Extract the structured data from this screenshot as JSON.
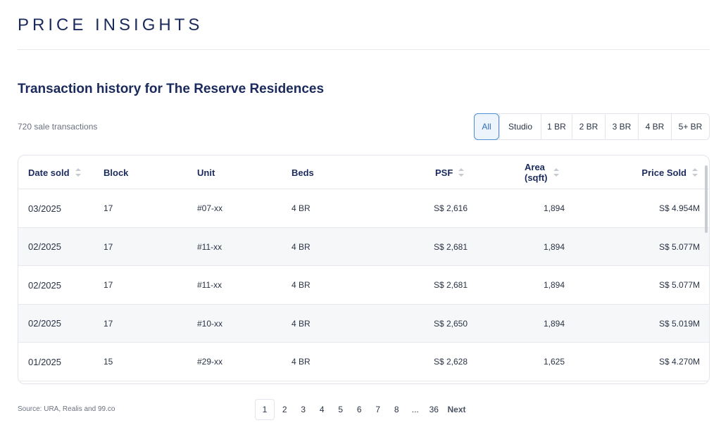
{
  "page": {
    "title": "PRICE INSIGHTS",
    "section_heading": "Transaction history for The Reserve Residences",
    "transaction_count": "720 sale transactions",
    "source": "Source: URA, Realis and 99.co"
  },
  "filters": {
    "active": "All",
    "items": [
      {
        "label": "All"
      },
      {
        "label": "Studio"
      },
      {
        "label": "1 BR"
      },
      {
        "label": "2 BR"
      },
      {
        "label": "3 BR"
      },
      {
        "label": "4 BR"
      },
      {
        "label": "5+ BR"
      }
    ]
  },
  "table": {
    "columns": {
      "date": "Date sold",
      "block": "Block",
      "unit": "Unit",
      "beds": "Beds",
      "psf": "PSF",
      "area_line1": "Area",
      "area_line2": "(sqft)",
      "price": "Price Sold"
    },
    "rows": [
      {
        "date": "03/2025",
        "block": "17",
        "unit": "#07-xx",
        "beds": "4 BR",
        "psf": "S$ 2,616",
        "area": "1,894",
        "price": "S$ 4.954M"
      },
      {
        "date": "02/2025",
        "block": "17",
        "unit": "#11-xx",
        "beds": "4 BR",
        "psf": "S$ 2,681",
        "area": "1,894",
        "price": "S$ 5.077M"
      },
      {
        "date": "02/2025",
        "block": "17",
        "unit": "#11-xx",
        "beds": "4 BR",
        "psf": "S$ 2,681",
        "area": "1,894",
        "price": "S$ 5.077M"
      },
      {
        "date": "02/2025",
        "block": "17",
        "unit": "#10-xx",
        "beds": "4 BR",
        "psf": "S$ 2,650",
        "area": "1,894",
        "price": "S$ 5.019M"
      },
      {
        "date": "01/2025",
        "block": "15",
        "unit": "#29-xx",
        "beds": "4 BR",
        "psf": "S$ 2,628",
        "area": "1,625",
        "price": "S$ 4.270M"
      }
    ]
  },
  "pagination": {
    "pages": [
      "1",
      "2",
      "3",
      "4",
      "5",
      "6",
      "7",
      "8"
    ],
    "ellipsis": "...",
    "last": "36",
    "next": "Next",
    "current": "1"
  }
}
